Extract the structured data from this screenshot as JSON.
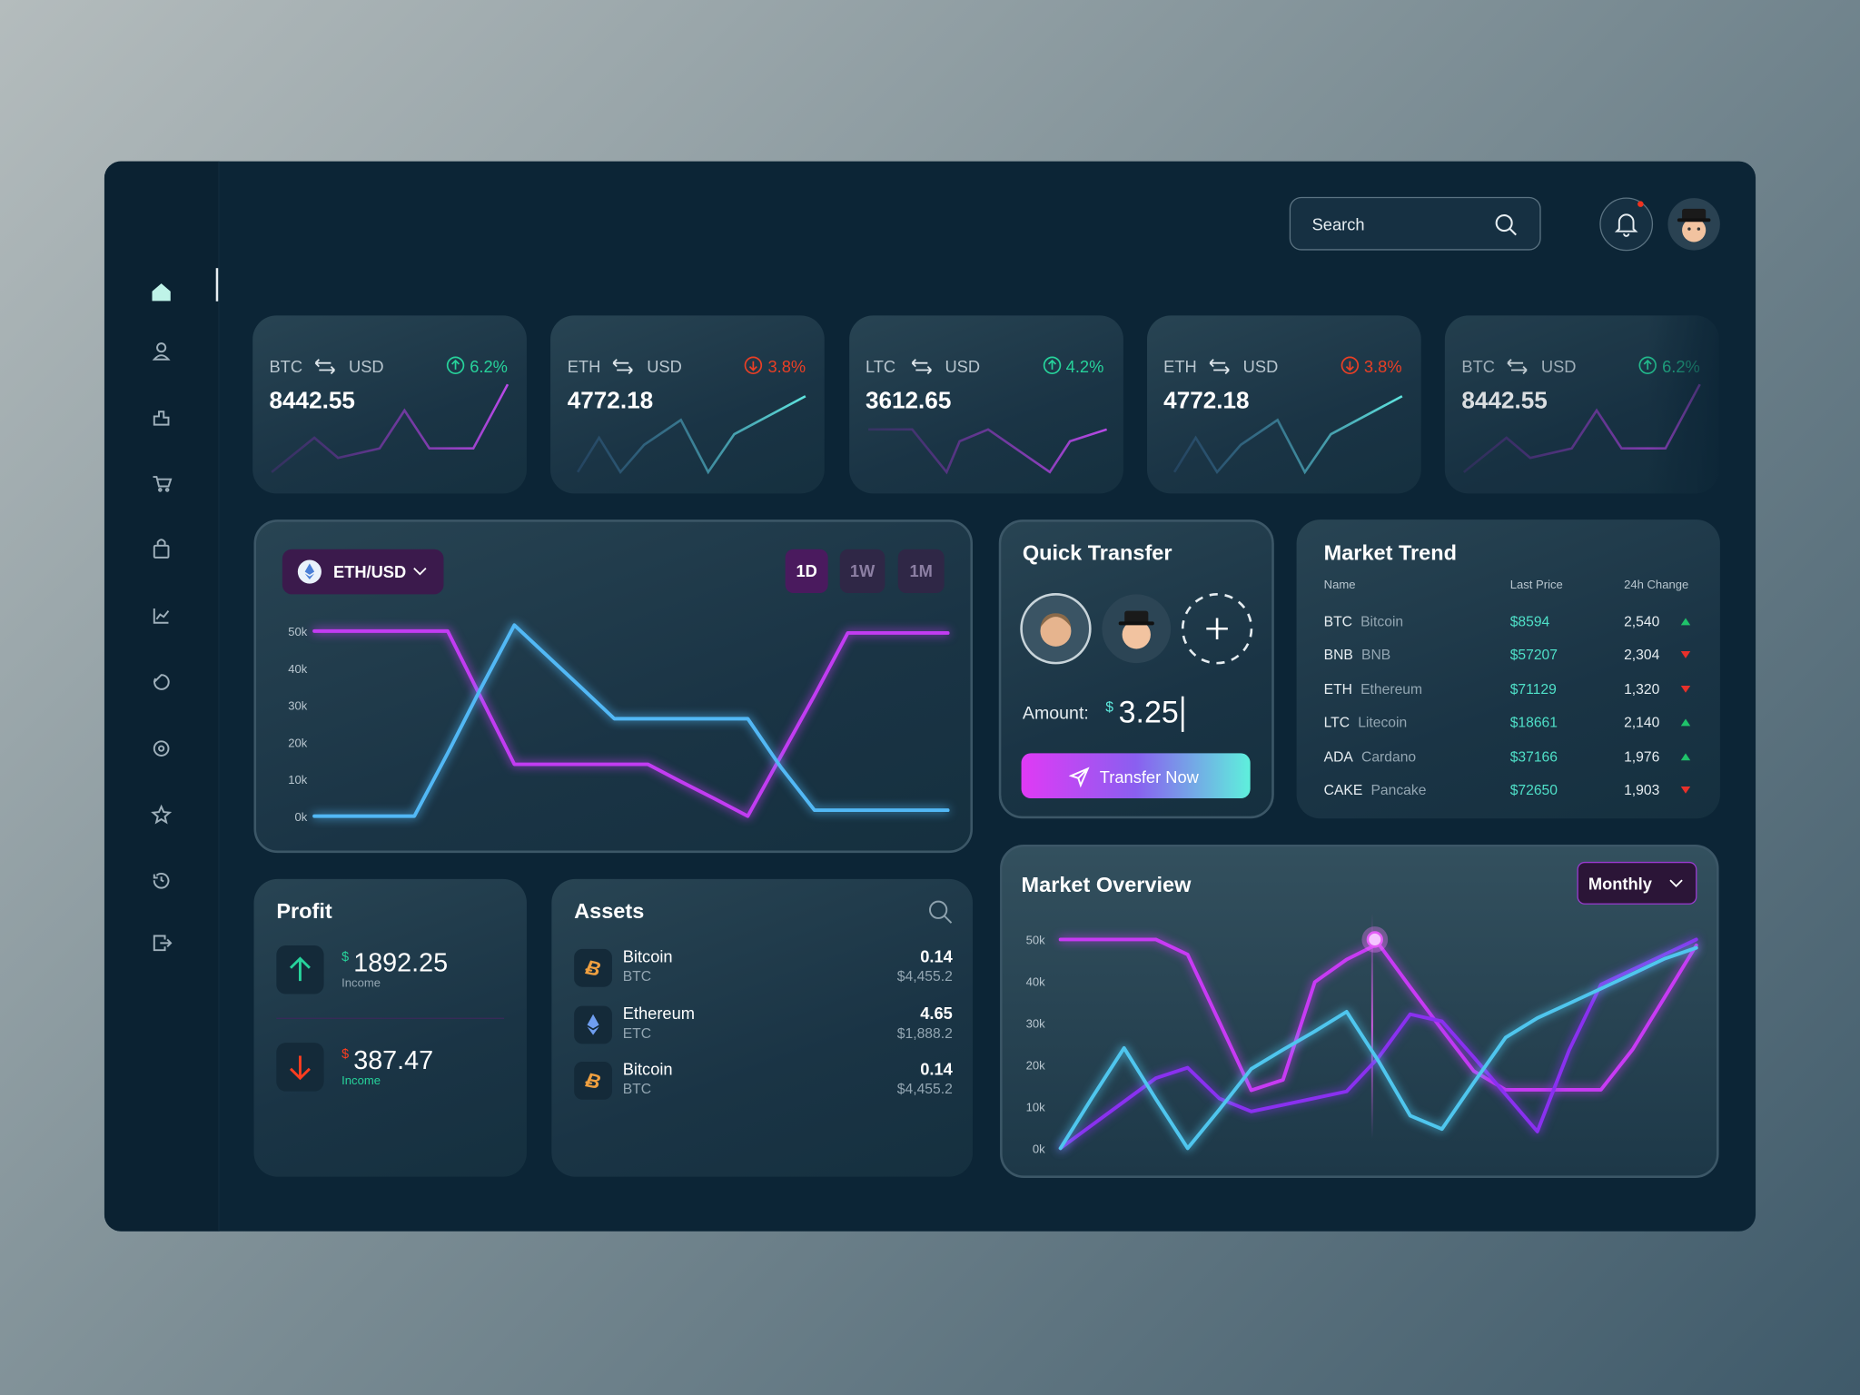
{
  "search": {
    "placeholder": "Search"
  },
  "tickers": [
    {
      "base": "BTC",
      "quote": "USD",
      "change": "6.2%",
      "direction": "up",
      "price": "8442.55"
    },
    {
      "base": "ETH",
      "quote": "USD",
      "change": "3.8%",
      "direction": "down",
      "price": "4772.18"
    },
    {
      "base": "LTC",
      "quote": "USD",
      "change": "4.2%",
      "direction": "up",
      "price": "3612.65"
    },
    {
      "base": "ETH",
      "quote": "USD",
      "change": "3.8%",
      "direction": "down",
      "price": "4772.18"
    },
    {
      "base": "BTC",
      "quote": "USD",
      "change": "6.2%",
      "direction": "up",
      "price": "8442.55"
    }
  ],
  "price_panel": {
    "ranges": [
      "1D",
      "1W",
      "1M"
    ],
    "active_range": 0
  },
  "quick_transfer": {
    "title": "Quick Transfer",
    "amount_label": "Amount:",
    "currency": "$",
    "amount": "3.25",
    "button": "Transfer Now"
  },
  "market_trend": {
    "title": "Market Trend",
    "columns": [
      "Name",
      "Last Price",
      "24h Change"
    ],
    "rows": [
      {
        "symbol": "BTC",
        "name": "Bitcoin",
        "price": "$8594",
        "change": "2,540",
        "direction": "up"
      },
      {
        "symbol": "BNB",
        "name": "BNB",
        "price": "$57207",
        "change": "2,304",
        "direction": "down"
      },
      {
        "symbol": "ETH",
        "name": "Ethereum",
        "price": "$71129",
        "change": "1,320",
        "direction": "down"
      },
      {
        "symbol": "LTC",
        "name": "Litecoin",
        "price": "$18661",
        "change": "2,140",
        "direction": "up"
      },
      {
        "symbol": "ADA",
        "name": "Cardano",
        "price": "$37166",
        "change": "1,976",
        "direction": "up"
      },
      {
        "symbol": "CAKE",
        "name": "Pancake",
        "price": "$72650",
        "change": "1,903",
        "direction": "down"
      }
    ]
  },
  "profit": {
    "title": "Profit",
    "entries": [
      {
        "currency": "$",
        "value": "1892.25",
        "label": "Income",
        "direction": "up"
      },
      {
        "currency": "$",
        "value": "387.47",
        "label": "Income",
        "direction": "down"
      }
    ]
  },
  "assets": {
    "title": "Assets",
    "rows": [
      {
        "name": "Bitcoin",
        "symbol": "BTC",
        "amount": "0.14",
        "value": "$4,455.2",
        "coin": "btc"
      },
      {
        "name": "Ethereum",
        "symbol": "ETC",
        "amount": "4.65",
        "value": "$1,888.2",
        "coin": "eth"
      },
      {
        "name": "Bitcoin",
        "symbol": "BTC",
        "amount": "0.14",
        "value": "$4,455.2",
        "coin": "btc"
      }
    ]
  },
  "market_overview": {
    "period": "Monthly"
  },
  "chart_data": [
    {
      "type": "line",
      "title": "ETH/USD",
      "categories": [
        null,
        null,
        null,
        null,
        null,
        null,
        null,
        null,
        null,
        null,
        null,
        null,
        null,
        null,
        null,
        null,
        null,
        null,
        null,
        null
      ],
      "series": [
        {
          "color": "#c23cf2",
          "values": [
            50000,
            50000,
            50000,
            50000,
            50000,
            32000,
            14000,
            14000,
            14000,
            14000,
            14000,
            9300,
            4700,
            0,
            16300,
            32600,
            49500,
            49500,
            49500,
            49500
          ]
        },
        {
          "color": "#52b8f5",
          "values": [
            0,
            0,
            0,
            0,
            17000,
            34600,
            51600,
            43200,
            34800,
            26300,
            26300,
            26300,
            26300,
            26300,
            13100,
            1600,
            1600,
            1600,
            1600,
            1600
          ]
        }
      ],
      "ylim": [
        0,
        50000
      ],
      "yticks": [
        {
          "value": 0,
          "label": "0k"
        },
        {
          "value": 10000,
          "label": "10k"
        },
        {
          "value": 20000,
          "label": "20k"
        },
        {
          "value": 30000,
          "label": "30k"
        },
        {
          "value": 40000,
          "label": "40k"
        },
        {
          "value": 50000,
          "label": "50k"
        }
      ]
    },
    {
      "type": "line",
      "title": "Market Overview",
      "categories": [
        null,
        null,
        null,
        null,
        null,
        null,
        null,
        null,
        null,
        null,
        null,
        null,
        null,
        null,
        null,
        null,
        null,
        null,
        null,
        null,
        null
      ],
      "series": [
        {
          "color": "#c83af4",
          "values": [
            50000,
            50000,
            50000,
            50000,
            46400,
            30200,
            13900,
            16400,
            39800,
            45200,
            49000,
            38600,
            28400,
            18500,
            14000,
            14000,
            14000,
            14000,
            23700,
            36100,
            48600
          ]
        },
        {
          "color": "#8a30f0",
          "values": [
            0,
            5600,
            11200,
            16800,
            19300,
            11900,
            8800,
            10400,
            12000,
            13600,
            21700,
            32100,
            30400,
            21800,
            12900,
            4000,
            23500,
            39200,
            42800,
            46400,
            50000
          ]
        },
        {
          "color": "#4fc6ee",
          "values": [
            0,
            12200,
            24000,
            11800,
            0,
            9300,
            19000,
            23600,
            28000,
            32700,
            20900,
            7800,
            4600,
            15700,
            26500,
            31200,
            34700,
            38200,
            41800,
            45400,
            48000
          ]
        }
      ],
      "ylim": [
        0,
        50000
      ],
      "yticks": [
        {
          "value": 0,
          "label": "0k"
        },
        {
          "value": 10000,
          "label": "10k"
        },
        {
          "value": 20000,
          "label": "20k"
        },
        {
          "value": 30000,
          "label": "30k"
        },
        {
          "value": 40000,
          "label": "40k"
        },
        {
          "value": 50000,
          "label": "50k"
        }
      ]
    }
  ]
}
